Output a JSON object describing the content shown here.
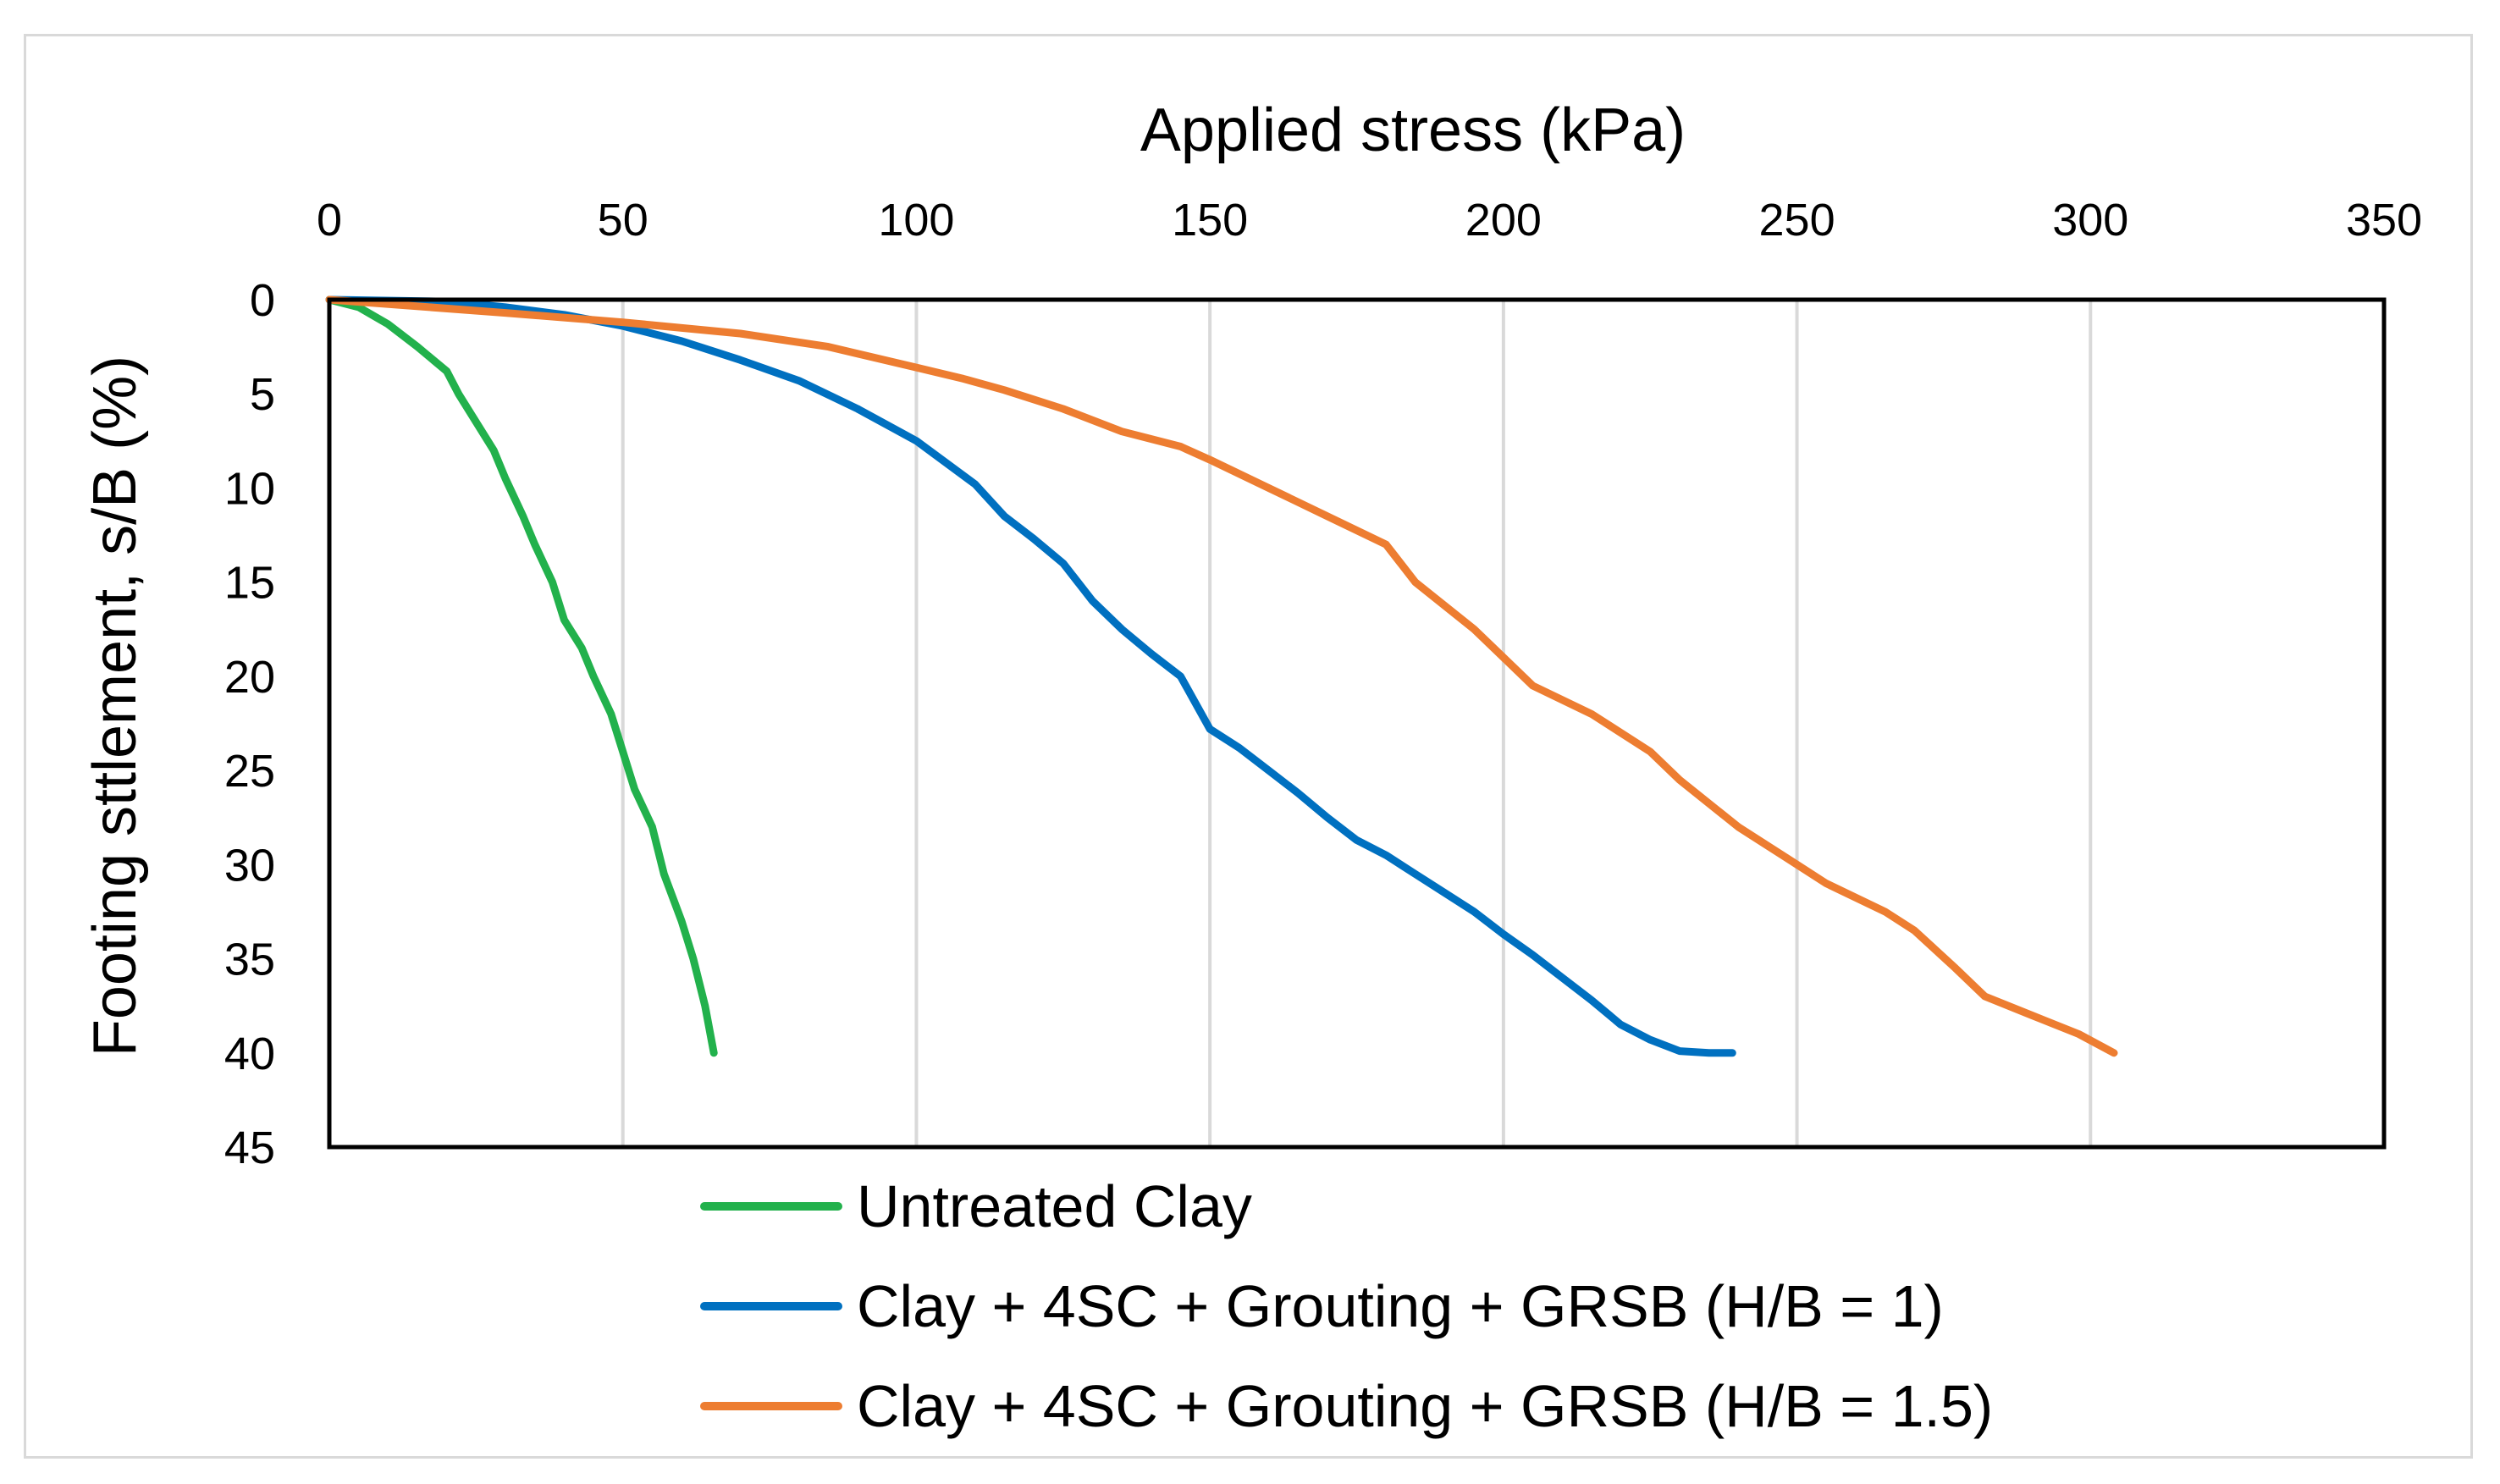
{
  "chart_data": {
    "type": "line",
    "title": "",
    "xlabel": "Applied stress (kPa)",
    "ylabel": "Footing sttlement, s/B (%)",
    "xlim": [
      0,
      350
    ],
    "ylim": [
      0,
      45
    ],
    "y_inverted": true,
    "x_axis_position": "top",
    "x_ticks": [
      0,
      50,
      100,
      150,
      200,
      250,
      300,
      350
    ],
    "y_ticks": [
      0,
      5,
      10,
      15,
      20,
      25,
      30,
      35,
      40,
      45
    ],
    "grid": "vertical",
    "legend_position": "bottom",
    "series": [
      {
        "name": "Untreated Clay",
        "color": "#22b14c",
        "x": [
          0,
          5,
          10,
          15,
          20,
          22,
          25,
          28,
          30,
          33,
          35,
          38,
          40,
          43,
          45,
          48,
          50,
          52,
          55,
          57,
          60,
          62,
          64,
          65.5
        ],
        "y": [
          0,
          0.4,
          1.3,
          2.5,
          3.8,
          5,
          6.5,
          8,
          9.5,
          11.5,
          13,
          15,
          17,
          18.5,
          20,
          22,
          24,
          26,
          28,
          30.5,
          33,
          35,
          37.5,
          40
        ]
      },
      {
        "name": "Clay + 4SC + Grouting + GRSB (H/B = 1)",
        "color": "#0070c0",
        "x": [
          0,
          20,
          30,
          40,
          50,
          60,
          70,
          80,
          90,
          100,
          110,
          115,
          120,
          125,
          130,
          135,
          140,
          145,
          150,
          155,
          160,
          165,
          170,
          175,
          180,
          185,
          190,
          195,
          200,
          205,
          210,
          215,
          220,
          225,
          230,
          235,
          239
        ],
        "y": [
          0,
          0.1,
          0.4,
          0.8,
          1.4,
          2.2,
          3.2,
          4.3,
          5.8,
          7.5,
          9.8,
          11.5,
          12.7,
          14,
          16,
          17.5,
          18.8,
          20,
          22.8,
          23.8,
          25,
          26.2,
          27.5,
          28.7,
          29.5,
          30.5,
          31.5,
          32.5,
          33.7,
          34.8,
          36,
          37.2,
          38.5,
          39.3,
          39.9,
          40,
          40
        ]
      },
      {
        "name": "Clay + 4SC + Grouting + GRSB (H/B = 1.5)",
        "color": "#ed7d31",
        "x": [
          0,
          30,
          50,
          70,
          85,
          100,
          108,
          115,
          125,
          135,
          145,
          150,
          160,
          170,
          180,
          185,
          195,
          200,
          205,
          215,
          225,
          230,
          240,
          250,
          255,
          265,
          270,
          277,
          282,
          290,
          298,
          304
        ],
        "y": [
          0,
          0.7,
          1.2,
          1.8,
          2.5,
          3.6,
          4.2,
          4.8,
          5.8,
          7,
          7.8,
          8.5,
          10,
          11.5,
          13,
          15,
          17.5,
          19,
          20.5,
          22,
          24,
          25.5,
          28,
          30,
          31,
          32.5,
          33.5,
          35.5,
          37,
          38,
          39,
          40
        ]
      }
    ]
  }
}
